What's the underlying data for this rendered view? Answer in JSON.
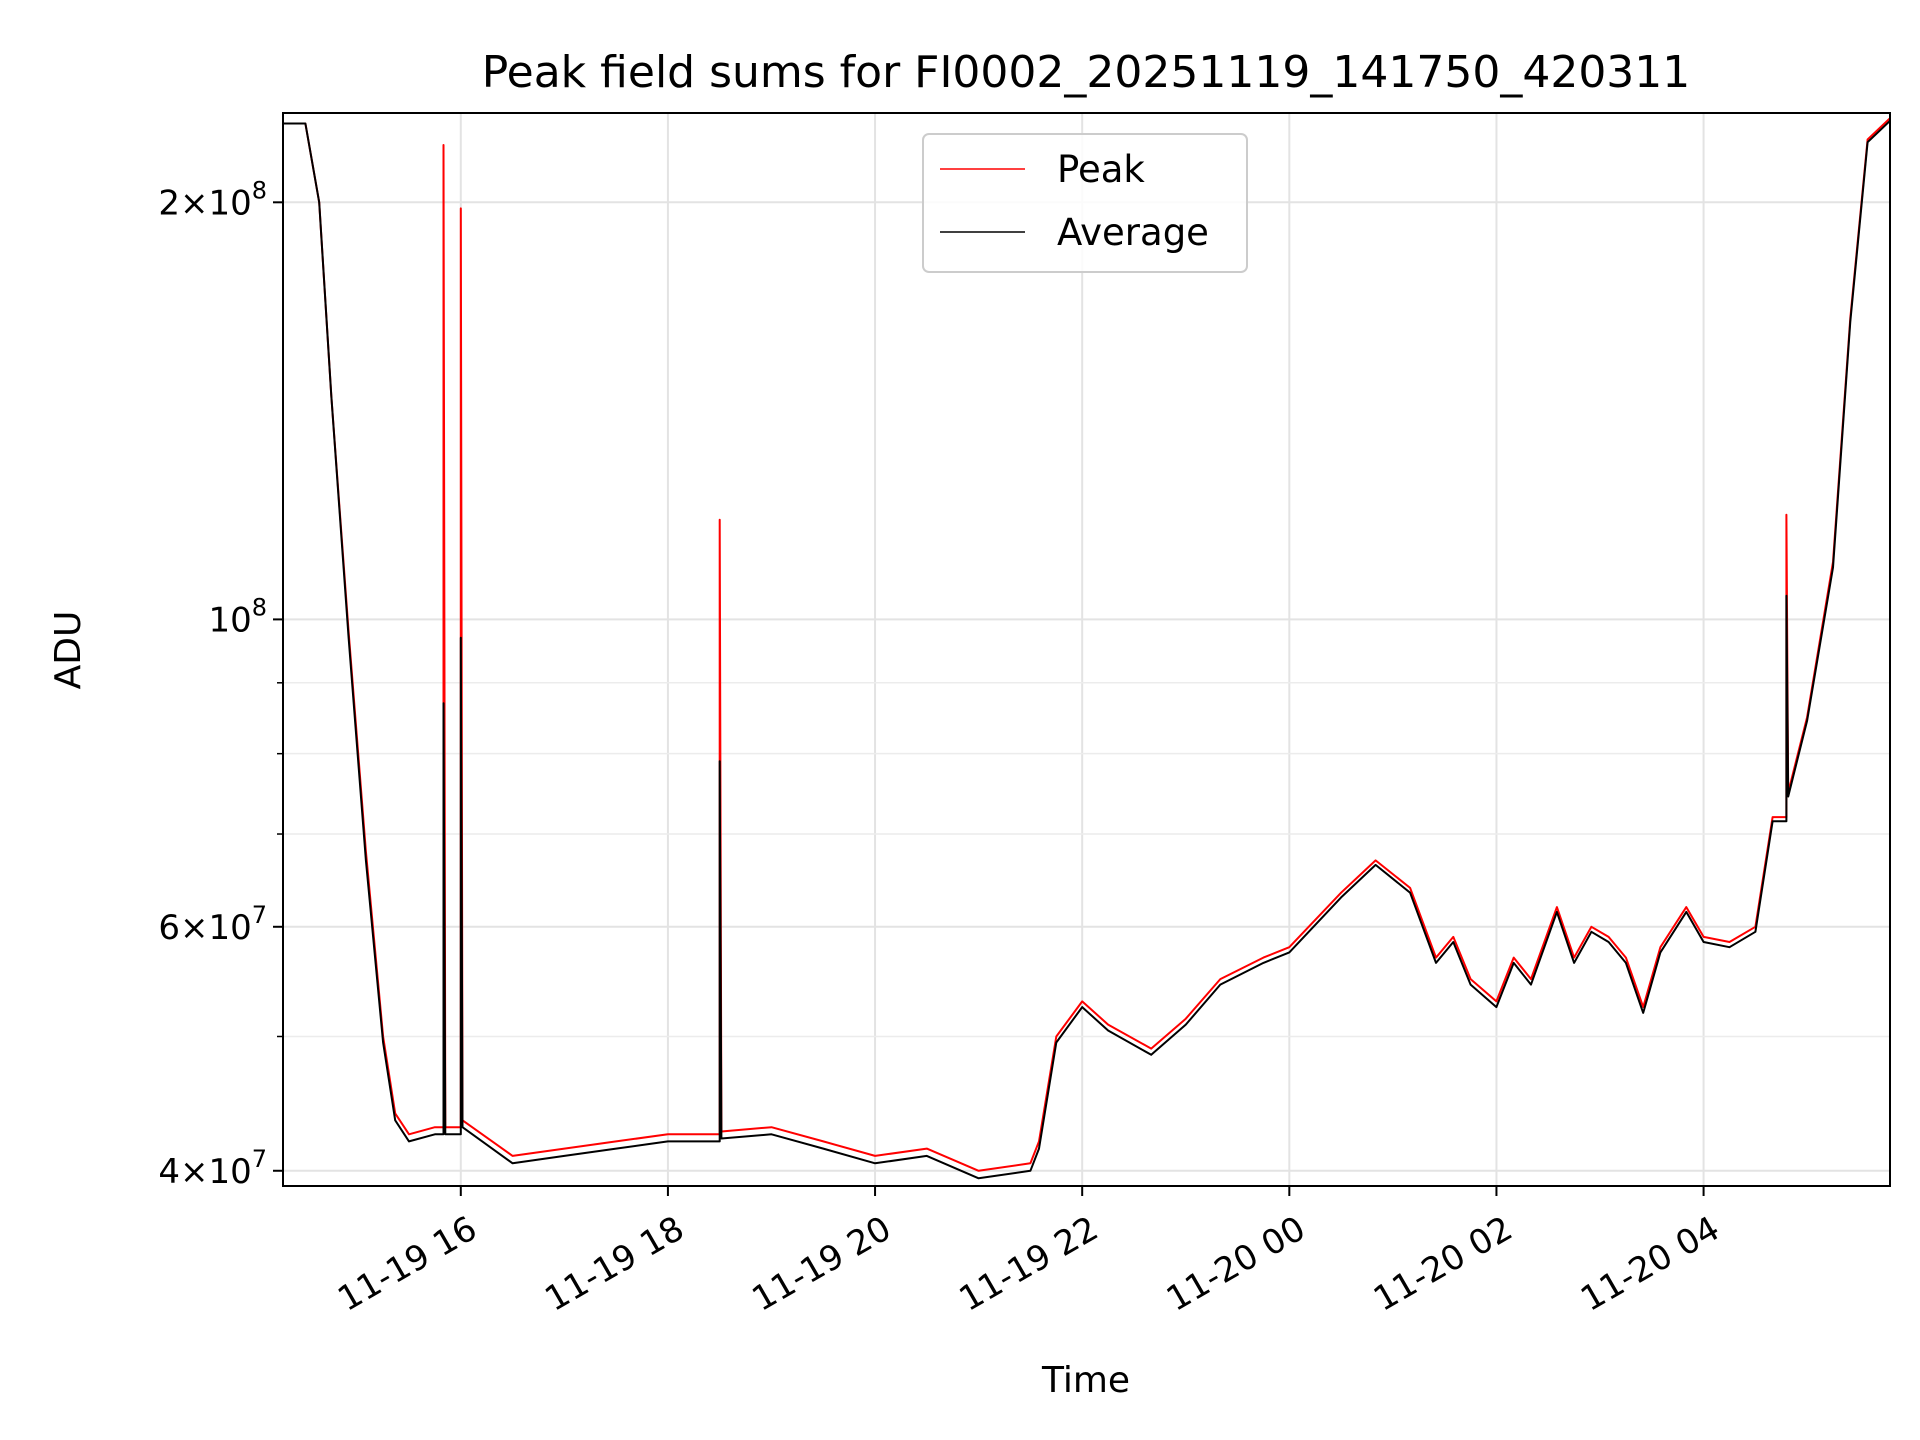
{
  "chart_data": {
    "type": "line",
    "title": "Peak field sums for FI0002_20251119_141750_420311",
    "xlabel": "Time",
    "ylabel": "ADU",
    "yscale": "log",
    "ylim": [
      39000000,
      232000000
    ],
    "xlim": [
      "2025-11-19T14:17",
      "2025-11-20T05:48"
    ],
    "grid": true,
    "legend": {
      "position": "top-center",
      "entries": [
        "Peak",
        "Average"
      ]
    },
    "x_ticks": [
      {
        "label": "11-19 16",
        "value": "2025-11-19T16:00"
      },
      {
        "label": "11-19 18",
        "value": "2025-11-19T18:00"
      },
      {
        "label": "11-19 20",
        "value": "2025-11-19T20:00"
      },
      {
        "label": "11-19 22",
        "value": "2025-11-19T22:00"
      },
      {
        "label": "11-20 00",
        "value": "2025-11-20T00:00"
      },
      {
        "label": "11-20 02",
        "value": "2025-11-20T02:00"
      },
      {
        "label": "11-20 04",
        "value": "2025-11-20T04:00"
      }
    ],
    "y_ticks": [
      {
        "label": "4×10⁷",
        "mantissa": "4",
        "exp": "7",
        "value": 40000000
      },
      {
        "label": "6×10⁷",
        "mantissa": "6",
        "exp": "7",
        "value": 60000000
      },
      {
        "label": "10⁸",
        "mantissa": "",
        "exp": "8",
        "value": 100000000
      },
      {
        "label": "2×10⁸",
        "mantissa": "2",
        "exp": "8",
        "value": 200000000
      }
    ],
    "y_minor_values": [
      50000000,
      70000000,
      80000000,
      90000000
    ],
    "series": [
      {
        "name": "Peak",
        "color": "#ff0000",
        "x": [
          "2025-11-19T14:17",
          "2025-11-19T14:30",
          "2025-11-19T14:38",
          "2025-11-19T14:45",
          "2025-11-19T14:55",
          "2025-11-19T15:05",
          "2025-11-19T15:15",
          "2025-11-19T15:22",
          "2025-11-19T15:30",
          "2025-11-19T15:45",
          "2025-11-19T15:50",
          "2025-11-19T15:50",
          "2025-11-19T15:51",
          "2025-11-19T16:00",
          "2025-11-19T16:00",
          "2025-11-19T16:01",
          "2025-11-19T16:30",
          "2025-11-19T17:00",
          "2025-11-19T17:30",
          "2025-11-19T18:00",
          "2025-11-19T18:30",
          "2025-11-19T18:30",
          "2025-11-19T18:31",
          "2025-11-19T19:00",
          "2025-11-19T19:30",
          "2025-11-19T20:00",
          "2025-11-19T20:30",
          "2025-11-19T21:00",
          "2025-11-19T21:30",
          "2025-11-19T21:35",
          "2025-11-19T21:45",
          "2025-11-19T22:00",
          "2025-11-19T22:15",
          "2025-11-19T22:40",
          "2025-11-19T23:00",
          "2025-11-19T23:20",
          "2025-11-19T23:45",
          "2025-11-20T00:00",
          "2025-11-20T00:30",
          "2025-11-20T00:50",
          "2025-11-20T01:10",
          "2025-11-20T01:25",
          "2025-11-20T01:35",
          "2025-11-20T01:45",
          "2025-11-20T02:00",
          "2025-11-20T02:10",
          "2025-11-20T02:20",
          "2025-11-20T02:35",
          "2025-11-20T02:45",
          "2025-11-20T02:55",
          "2025-11-20T03:05",
          "2025-11-20T03:15",
          "2025-11-20T03:25",
          "2025-11-20T03:35",
          "2025-11-20T03:50",
          "2025-11-20T04:00",
          "2025-11-20T04:15",
          "2025-11-20T04:30",
          "2025-11-20T04:40",
          "2025-11-20T04:48",
          "2025-11-20T04:48",
          "2025-11-20T04:49",
          "2025-11-20T05:00",
          "2025-11-20T05:15",
          "2025-11-20T05:25",
          "2025-11-20T05:35",
          "2025-11-20T05:48"
        ],
        "y": [
          228000000,
          228000000,
          200000000,
          145000000,
          98000000,
          68000000,
          50000000,
          44000000,
          42500000,
          43000000,
          43000000,
          220000000,
          43000000,
          43000000,
          198000000,
          43500000,
          41000000,
          41500000,
          42000000,
          42500000,
          42500000,
          118000000,
          42700000,
          43000000,
          42000000,
          41000000,
          41500000,
          40000000,
          40500000,
          42000000,
          50000000,
          53000000,
          51000000,
          49000000,
          51500000,
          55000000,
          57000000,
          58000000,
          63500000,
          67000000,
          64000000,
          57000000,
          59000000,
          55000000,
          53000000,
          57000000,
          55000000,
          62000000,
          57000000,
          60000000,
          59000000,
          57000000,
          52500000,
          58000000,
          62000000,
          59000000,
          58500000,
          60000000,
          72000000,
          72000000,
          119000000,
          75000000,
          85000000,
          110000000,
          165000000,
          222000000,
          230000000
        ]
      },
      {
        "name": "Average",
        "color": "#000000",
        "x": [
          "2025-11-19T14:17",
          "2025-11-19T14:30",
          "2025-11-19T14:38",
          "2025-11-19T14:45",
          "2025-11-19T14:55",
          "2025-11-19T15:05",
          "2025-11-19T15:15",
          "2025-11-19T15:22",
          "2025-11-19T15:30",
          "2025-11-19T15:45",
          "2025-11-19T15:50",
          "2025-11-19T15:50",
          "2025-11-19T15:51",
          "2025-11-19T16:00",
          "2025-11-19T16:00",
          "2025-11-19T16:01",
          "2025-11-19T16:30",
          "2025-11-19T17:00",
          "2025-11-19T17:30",
          "2025-11-19T18:00",
          "2025-11-19T18:30",
          "2025-11-19T18:30",
          "2025-11-19T18:31",
          "2025-11-19T19:00",
          "2025-11-19T19:30",
          "2025-11-19T20:00",
          "2025-11-19T20:30",
          "2025-11-19T21:00",
          "2025-11-19T21:30",
          "2025-11-19T21:35",
          "2025-11-19T21:45",
          "2025-11-19T22:00",
          "2025-11-19T22:15",
          "2025-11-19T22:40",
          "2025-11-19T23:00",
          "2025-11-19T23:20",
          "2025-11-19T23:45",
          "2025-11-20T00:00",
          "2025-11-20T00:30",
          "2025-11-20T00:50",
          "2025-11-20T01:10",
          "2025-11-20T01:25",
          "2025-11-20T01:35",
          "2025-11-20T01:45",
          "2025-11-20T02:00",
          "2025-11-20T02:10",
          "2025-11-20T02:20",
          "2025-11-20T02:35",
          "2025-11-20T02:45",
          "2025-11-20T02:55",
          "2025-11-20T03:05",
          "2025-11-20T03:15",
          "2025-11-20T03:25",
          "2025-11-20T03:35",
          "2025-11-20T03:50",
          "2025-11-20T04:00",
          "2025-11-20T04:15",
          "2025-11-20T04:30",
          "2025-11-20T04:40",
          "2025-11-20T04:48",
          "2025-11-20T04:48",
          "2025-11-20T04:49",
          "2025-11-20T05:00",
          "2025-11-20T05:15",
          "2025-11-20T05:25",
          "2025-11-20T05:35",
          "2025-11-20T05:48"
        ],
        "y": [
          228000000,
          228000000,
          200000000,
          145000000,
          97000000,
          67000000,
          49500000,
          43500000,
          42000000,
          42500000,
          42500000,
          87000000,
          42500000,
          42500000,
          97000000,
          43000000,
          40500000,
          41000000,
          41500000,
          42000000,
          42000000,
          79000000,
          42200000,
          42500000,
          41500000,
          40500000,
          41000000,
          39500000,
          40000000,
          41500000,
          49500000,
          52500000,
          50500000,
          48500000,
          51000000,
          54500000,
          56500000,
          57500000,
          63000000,
          66500000,
          63500000,
          56500000,
          58500000,
          54500000,
          52500000,
          56500000,
          54500000,
          61500000,
          56500000,
          59500000,
          58500000,
          56500000,
          52000000,
          57500000,
          61500000,
          58500000,
          58000000,
          59500000,
          71500000,
          71500000,
          104000000,
          74500000,
          84500000,
          109000000,
          164000000,
          221000000,
          229000000
        ]
      }
    ]
  }
}
